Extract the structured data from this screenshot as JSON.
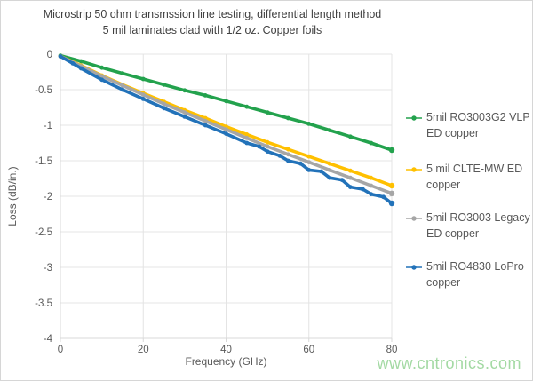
{
  "figure": {
    "background": "#ffffff",
    "border_color": "#d6d6d6"
  },
  "watermark": {
    "text": "www.cntronics.com",
    "color": "#a3d9a3"
  },
  "chart_data": {
    "type": "line",
    "title": "Microstrip 50 ohm transmssion line testing, differential length method",
    "subtitle": "5 mil laminates clad with 1/2 oz. Copper foils",
    "xlabel": "Frequency (GHz)",
    "ylabel": "Loss (dB/in.)",
    "xlim": [
      0,
      80
    ],
    "ylim": [
      -4,
      0
    ],
    "x_ticks": [
      0,
      20,
      40,
      60,
      80
    ],
    "x_tick_labels": [
      "0",
      "20",
      "40",
      "60",
      "80"
    ],
    "y_ticks": [
      0,
      -0.5,
      -1,
      -1.5,
      -2,
      -2.5,
      -3,
      -3.5,
      -4
    ],
    "y_tick_labels": [
      "0",
      "-0.5",
      "-1",
      "-1.5",
      "-2",
      "-2.5",
      "-3",
      "-3.5",
      "-4"
    ],
    "grid": true,
    "legend_position": "right",
    "axis_color": "#d9d9d9",
    "grid_color": "#e4e4e4",
    "text_color": "#595959",
    "title_color": "#404040",
    "series": [
      {
        "label": "5mil RO3003G2 VLP ED copper",
        "color": "#23a24d",
        "x": [
          0,
          5,
          10,
          15,
          20,
          25,
          30,
          35,
          40,
          45,
          50,
          55,
          60,
          65,
          70,
          75,
          80
        ],
        "y": [
          -0.02,
          -0.1,
          -0.19,
          -0.27,
          -0.35,
          -0.43,
          -0.51,
          -0.58,
          -0.66,
          -0.74,
          -0.82,
          -0.9,
          -0.98,
          -1.07,
          -1.16,
          -1.25,
          -1.35
        ]
      },
      {
        "label": "5 mil CLTE-MW ED copper",
        "color": "#ffc000",
        "x": [
          0,
          5,
          10,
          15,
          20,
          25,
          30,
          35,
          40,
          45,
          50,
          55,
          60,
          65,
          70,
          75,
          80
        ],
        "y": [
          -0.03,
          -0.16,
          -0.3,
          -0.43,
          -0.55,
          -0.67,
          -0.79,
          -0.9,
          -1.02,
          -1.13,
          -1.24,
          -1.34,
          -1.44,
          -1.54,
          -1.64,
          -1.74,
          -1.85
        ]
      },
      {
        "label": "5mil RO3003 Legacy ED copper",
        "color": "#a6a6a6",
        "x": [
          0,
          5,
          10,
          15,
          20,
          25,
          30,
          35,
          40,
          45,
          50,
          55,
          60,
          65,
          70,
          75,
          80
        ],
        "y": [
          -0.03,
          -0.17,
          -0.31,
          -0.44,
          -0.57,
          -0.7,
          -0.82,
          -0.94,
          -1.06,
          -1.18,
          -1.3,
          -1.41,
          -1.52,
          -1.63,
          -1.74,
          -1.85,
          -1.96
        ]
      },
      {
        "label": "5mil RO4830 LoPro copper",
        "color": "#2272b9",
        "x": [
          0,
          3,
          5,
          10,
          15,
          20,
          25,
          30,
          35,
          40,
          45,
          48,
          50,
          53,
          55,
          58,
          60,
          63,
          65,
          68,
          70,
          73,
          75,
          78,
          80
        ],
        "y": [
          -0.03,
          -0.13,
          -0.2,
          -0.36,
          -0.5,
          -0.63,
          -0.76,
          -0.88,
          -1.0,
          -1.12,
          -1.25,
          -1.3,
          -1.37,
          -1.43,
          -1.5,
          -1.54,
          -1.63,
          -1.65,
          -1.74,
          -1.77,
          -1.87,
          -1.9,
          -1.97,
          -2.01,
          -2.1
        ]
      }
    ]
  }
}
